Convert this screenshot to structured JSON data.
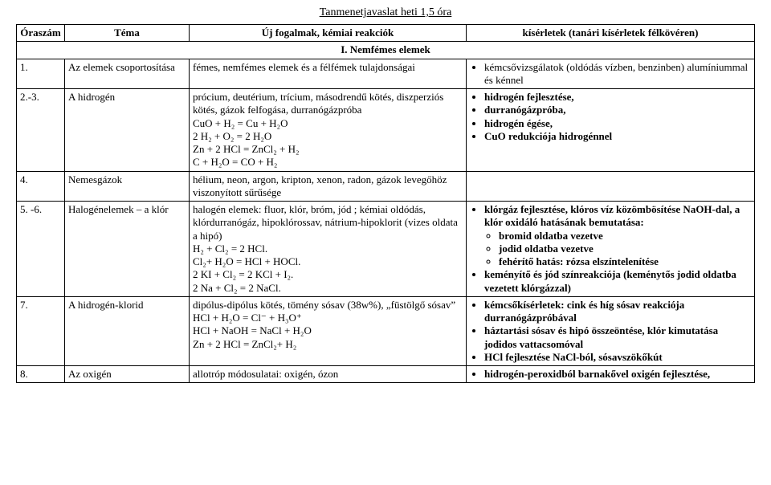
{
  "title": "Tanmenetjavaslat heti 1,5 óra",
  "header": {
    "col1": "Óraszám",
    "col2": "Téma",
    "col3": "Új fogalmak, kémiai reakciók",
    "col4": "kísérletek (tanári kísérletek félkövéren)"
  },
  "section": "I. Nemfémes elemek",
  "rows": {
    "r1": {
      "num": "1.",
      "topic": "Az elemek csoportosítása",
      "concepts": "fémes, nemfémes elemek és a félfémek tulajdonságai",
      "exp": [
        "kémcsővizsgálatok (oldódás vízben, benzinben) alumíniummal és kénnel"
      ]
    },
    "r2": {
      "num": "2.-3.",
      "topic": "A hidrogén",
      "concepts": "prócium, deutérium, trícium, másodrendű kötés, diszperziós kötés, gázok felfogása, durranógázpróba\nCuO + H₂ = Cu + H₂O\n2 H₂ + O₂ = 2 H₂O\nZn + 2 HCl = ZnCl₂ + H₂\nC + H₂O = CO + H₂",
      "exp": [
        "hidrogén fejlesztése,",
        "durranógázpróba,",
        "hidrogén égése,",
        "CuO redukciója hidrogénnel"
      ]
    },
    "r3": {
      "num": "4.",
      "topic": "Nemesgázok",
      "concepts": "hélium, neon, argon, kripton, xenon, radon, gázok levegőhöz viszonyított sűrűsége",
      "exp": []
    },
    "r4": {
      "num": "5. -6.",
      "topic": "Halogénelemek – a klór",
      "concepts": "halogén elemek: fluor, klór, bróm, jód ; kémiai oldódás, klórdurranógáz, hipoklórossav, nátrium-hipoklorit (vizes oldata a hipó)\nH₂ + Cl₂ = 2 HCl.\nCl₂+ H₂O = HCl + HOCl.\n2 KI + Cl₂ = 2 KCl + I₂.\n2 Na + Cl₂ = 2 NaCl.",
      "exp_main": "klórgáz fejlesztése, klóros víz közömbösítése NaOH-dal, a klór oxidáló hatásának bemutatása:",
      "exp_sub": [
        "bromid oldatba vezetve",
        "jodid oldatba vezetve",
        "fehérítő hatás: rózsa elszíntelenítése"
      ],
      "exp_tail": [
        "keményítő és jód színreakciója (keménytős jodid oldatba vezetett klórgázzal)"
      ]
    },
    "r5": {
      "num": "7.",
      "topic": "A hidrogén-klorid",
      "concepts": "dipólus-dipólus kötés, tömény sósav (38w%), „füstölgő sósav”\nHCl + H₂O = Cl⁻ + H₃O⁺\nHCl + NaOH = NaCl + H₂O\nZn + 2 HCl = ZnCl₂+ H₂",
      "exp": [
        "kémcsőkísérletek: cink és híg sósav reakciója durranógázpróbával",
        "háztartási sósav és hipó összeöntése, klór kimutatása jodidos vattacsomóval",
        "HCl fejlesztése NaCl-ból, sósavszökőkút"
      ]
    },
    "r6": {
      "num": "8.",
      "topic": "Az oxigén",
      "concepts": "allotróp módosulatai: oxigén, ózon",
      "exp": [
        "hidrogén-peroxidból barnakővel oxigén fejlesztése,"
      ]
    }
  }
}
